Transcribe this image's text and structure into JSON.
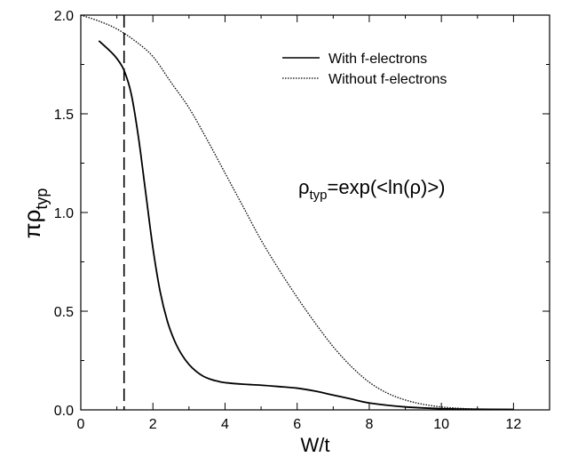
{
  "chart_data": {
    "type": "line",
    "title": "",
    "xlabel": "W/t",
    "ylabel": {
      "main": "πρ",
      "sub": "typ"
    },
    "xlim": [
      0,
      13
    ],
    "ylim": [
      0,
      2
    ],
    "xticks": [
      0,
      2,
      4,
      6,
      8,
      10,
      12
    ],
    "yticks": [
      0,
      0.5,
      1,
      1.5,
      2
    ],
    "xtick_labels": [
      "0",
      "2",
      "4",
      "6",
      "8",
      "10",
      "12"
    ],
    "ytick_labels": [
      "0.0",
      "0.5",
      "1.0",
      "1.5",
      "2.0"
    ],
    "grid": false,
    "legend": "top-right",
    "annotation": {
      "pre": "ρ",
      "sub": "typ",
      "post": "=exp(<ln(ρ)>)"
    },
    "vertical_line": {
      "x": 1.2,
      "style": "dashed"
    },
    "series": [
      {
        "name": "With f-electrons",
        "style": "solid",
        "x": [
          0.5,
          0.8,
          1.0,
          1.2,
          1.4,
          1.6,
          1.8,
          2.0,
          2.2,
          2.4,
          2.6,
          2.8,
          3.0,
          3.2,
          3.4,
          3.6,
          3.8,
          4.0,
          4.5,
          5.0,
          5.5,
          6.0,
          6.5,
          7.0,
          7.5,
          8.0,
          9.0,
          10.0,
          11.0,
          12.0
        ],
        "y": [
          1.87,
          1.82,
          1.78,
          1.72,
          1.6,
          1.38,
          1.1,
          0.82,
          0.6,
          0.45,
          0.35,
          0.28,
          0.23,
          0.195,
          0.17,
          0.155,
          0.145,
          0.138,
          0.13,
          0.125,
          0.118,
          0.11,
          0.095,
          0.075,
          0.055,
          0.035,
          0.015,
          0.006,
          0.003,
          0.002
        ]
      },
      {
        "name": "Without f-electrons",
        "style": "dotted",
        "x": [
          0,
          0.5,
          1.0,
          1.5,
          2.0,
          2.5,
          3.0,
          3.5,
          4.0,
          4.5,
          5.0,
          5.5,
          6.0,
          6.5,
          7.0,
          7.5,
          8.0,
          8.5,
          9.0,
          9.5,
          10.0,
          10.5,
          11.0,
          12.0
        ],
        "y": [
          2.0,
          1.97,
          1.93,
          1.87,
          1.79,
          1.66,
          1.53,
          1.37,
          1.2,
          1.03,
          0.86,
          0.71,
          0.57,
          0.44,
          0.32,
          0.22,
          0.14,
          0.085,
          0.05,
          0.028,
          0.015,
          0.008,
          0.004,
          0.002
        ]
      }
    ]
  }
}
